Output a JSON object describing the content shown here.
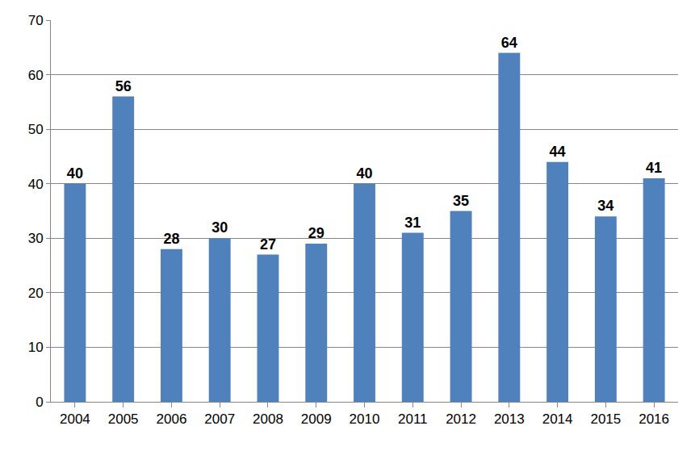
{
  "chart_data": {
    "type": "bar",
    "categories": [
      "2004",
      "2005",
      "2006",
      "2007",
      "2008",
      "2009",
      "2010",
      "2011",
      "2012",
      "2013",
      "2014",
      "2015",
      "2016"
    ],
    "values": [
      40,
      56,
      28,
      30,
      27,
      29,
      40,
      31,
      35,
      64,
      44,
      34,
      41
    ],
    "color": "#4f81bd",
    "ylim": [
      0,
      70
    ],
    "yticks": [
      0,
      10,
      20,
      30,
      40,
      50,
      60,
      70
    ],
    "grid": true,
    "data_labels": true
  }
}
